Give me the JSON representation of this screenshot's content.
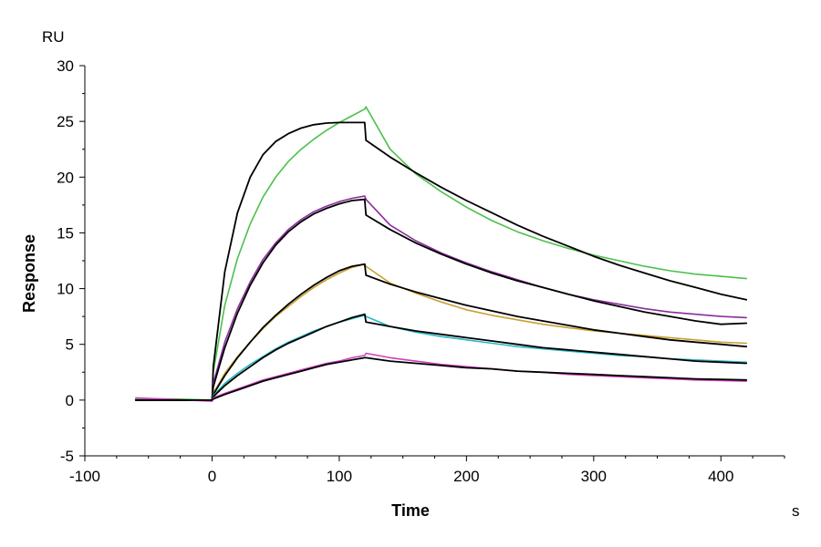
{
  "chart_data": {
    "type": "line",
    "xlabel": "Time",
    "xunit": "s",
    "ylabel": "Response",
    "yunit": "RU",
    "xlim": [
      -100,
      450
    ],
    "ylim": [
      -5,
      30
    ],
    "xticks": [
      -100,
      0,
      100,
      200,
      300,
      400
    ],
    "yticks": [
      -5,
      0,
      5,
      10,
      15,
      20,
      25,
      30
    ],
    "grid": false,
    "legend": "none",
    "series": [
      {
        "color": "#4cc04c",
        "points": [
          [
            -60,
            0.1
          ],
          [
            -30,
            0.1
          ],
          [
            0,
            0
          ],
          [
            1,
            2.5
          ],
          [
            10,
            8.5
          ],
          [
            20,
            12.7
          ],
          [
            30,
            15.8
          ],
          [
            40,
            18.2
          ],
          [
            50,
            20.0
          ],
          [
            60,
            21.4
          ],
          [
            70,
            22.5
          ],
          [
            80,
            23.4
          ],
          [
            90,
            24.2
          ],
          [
            100,
            24.9
          ],
          [
            110,
            25.5
          ],
          [
            120,
            26.1
          ],
          [
            121,
            26.3
          ],
          [
            140,
            22.5
          ],
          [
            160,
            20.3
          ],
          [
            180,
            18.7
          ],
          [
            200,
            17.3
          ],
          [
            220,
            16.1
          ],
          [
            240,
            15.1
          ],
          [
            260,
            14.3
          ],
          [
            280,
            13.6
          ],
          [
            300,
            13.0
          ],
          [
            320,
            12.5
          ],
          [
            340,
            12.0
          ],
          [
            360,
            11.6
          ],
          [
            380,
            11.3
          ],
          [
            400,
            11.1
          ],
          [
            420,
            10.9
          ]
        ]
      },
      {
        "color": "#000000",
        "points": [
          [
            -60,
            0
          ],
          [
            0,
            0
          ],
          [
            1,
            3.0
          ],
          [
            10,
            11.5
          ],
          [
            20,
            16.8
          ],
          [
            30,
            20.0
          ],
          [
            40,
            22.0
          ],
          [
            50,
            23.2
          ],
          [
            60,
            23.9
          ],
          [
            70,
            24.4
          ],
          [
            80,
            24.7
          ],
          [
            90,
            24.85
          ],
          [
            100,
            24.9
          ],
          [
            120,
            24.9
          ],
          [
            121,
            23.3
          ],
          [
            140,
            21.8
          ],
          [
            160,
            20.4
          ],
          [
            180,
            19.1
          ],
          [
            200,
            17.9
          ],
          [
            220,
            16.8
          ],
          [
            240,
            15.7
          ],
          [
            260,
            14.7
          ],
          [
            280,
            13.8
          ],
          [
            300,
            12.9
          ],
          [
            320,
            12.1
          ],
          [
            340,
            11.4
          ],
          [
            360,
            10.7
          ],
          [
            380,
            10.1
          ],
          [
            400,
            9.5
          ],
          [
            420,
            9.0
          ]
        ]
      },
      {
        "color": "#8b2d9e",
        "points": [
          [
            -60,
            0
          ],
          [
            0,
            0
          ],
          [
            1,
            1.5
          ],
          [
            10,
            5.2
          ],
          [
            20,
            8.2
          ],
          [
            30,
            10.6
          ],
          [
            40,
            12.6
          ],
          [
            50,
            14.1
          ],
          [
            60,
            15.3
          ],
          [
            70,
            16.2
          ],
          [
            80,
            16.9
          ],
          [
            90,
            17.4
          ],
          [
            100,
            17.8
          ],
          [
            110,
            18.1
          ],
          [
            120,
            18.3
          ],
          [
            121,
            18.0
          ],
          [
            140,
            15.7
          ],
          [
            160,
            14.3
          ],
          [
            180,
            13.2
          ],
          [
            200,
            12.3
          ],
          [
            220,
            11.5
          ],
          [
            240,
            10.8
          ],
          [
            260,
            10.1
          ],
          [
            280,
            9.5
          ],
          [
            300,
            9.0
          ],
          [
            320,
            8.6
          ],
          [
            340,
            8.2
          ],
          [
            360,
            7.9
          ],
          [
            380,
            7.7
          ],
          [
            400,
            7.5
          ],
          [
            420,
            7.4
          ]
        ]
      },
      {
        "color": "#000000",
        "points": [
          [
            -60,
            0
          ],
          [
            0,
            0
          ],
          [
            1,
            1.2
          ],
          [
            10,
            4.7
          ],
          [
            20,
            7.8
          ],
          [
            30,
            10.3
          ],
          [
            40,
            12.3
          ],
          [
            50,
            13.9
          ],
          [
            60,
            15.1
          ],
          [
            70,
            16.0
          ],
          [
            80,
            16.7
          ],
          [
            90,
            17.2
          ],
          [
            100,
            17.6
          ],
          [
            110,
            17.9
          ],
          [
            120,
            18.0
          ],
          [
            121,
            16.6
          ],
          [
            140,
            15.3
          ],
          [
            160,
            14.1
          ],
          [
            180,
            13.1
          ],
          [
            200,
            12.2
          ],
          [
            220,
            11.4
          ],
          [
            240,
            10.7
          ],
          [
            260,
            10.1
          ],
          [
            280,
            9.5
          ],
          [
            300,
            8.9
          ],
          [
            320,
            8.4
          ],
          [
            340,
            7.9
          ],
          [
            360,
            7.5
          ],
          [
            380,
            7.1
          ],
          [
            400,
            6.8
          ],
          [
            420,
            6.9
          ]
        ]
      },
      {
        "color": "#c9a030",
        "points": [
          [
            -60,
            0
          ],
          [
            0,
            0
          ],
          [
            1,
            0.6
          ],
          [
            10,
            2.4
          ],
          [
            20,
            3.9
          ],
          [
            30,
            5.2
          ],
          [
            40,
            6.4
          ],
          [
            50,
            7.5
          ],
          [
            60,
            8.4
          ],
          [
            70,
            9.3
          ],
          [
            80,
            10.1
          ],
          [
            90,
            10.8
          ],
          [
            100,
            11.4
          ],
          [
            110,
            11.9
          ],
          [
            120,
            12.2
          ],
          [
            121,
            12.0
          ],
          [
            140,
            10.5
          ],
          [
            160,
            9.6
          ],
          [
            180,
            8.8
          ],
          [
            200,
            8.1
          ],
          [
            220,
            7.6
          ],
          [
            240,
            7.2
          ],
          [
            260,
            6.8
          ],
          [
            280,
            6.5
          ],
          [
            300,
            6.2
          ],
          [
            320,
            6.0
          ],
          [
            340,
            5.8
          ],
          [
            360,
            5.6
          ],
          [
            380,
            5.4
          ],
          [
            400,
            5.2
          ],
          [
            420,
            5.1
          ]
        ]
      },
      {
        "color": "#000000",
        "points": [
          [
            -60,
            0
          ],
          [
            0,
            0
          ],
          [
            1,
            0.5
          ],
          [
            10,
            2.2
          ],
          [
            20,
            3.8
          ],
          [
            30,
            5.2
          ],
          [
            40,
            6.5
          ],
          [
            50,
            7.6
          ],
          [
            60,
            8.6
          ],
          [
            70,
            9.5
          ],
          [
            80,
            10.3
          ],
          [
            90,
            11.0
          ],
          [
            100,
            11.6
          ],
          [
            110,
            12.0
          ],
          [
            120,
            12.2
          ],
          [
            121,
            11.2
          ],
          [
            140,
            10.4
          ],
          [
            160,
            9.7
          ],
          [
            180,
            9.1
          ],
          [
            200,
            8.5
          ],
          [
            220,
            8.0
          ],
          [
            240,
            7.5
          ],
          [
            260,
            7.1
          ],
          [
            280,
            6.7
          ],
          [
            300,
            6.3
          ],
          [
            320,
            6.0
          ],
          [
            340,
            5.7
          ],
          [
            360,
            5.4
          ],
          [
            380,
            5.2
          ],
          [
            400,
            5.0
          ],
          [
            420,
            4.8
          ]
        ]
      },
      {
        "color": "#2bb8c8",
        "points": [
          [
            -60,
            0
          ],
          [
            0,
            0
          ],
          [
            1,
            0.4
          ],
          [
            10,
            1.5
          ],
          [
            20,
            2.4
          ],
          [
            30,
            3.2
          ],
          [
            40,
            3.9
          ],
          [
            50,
            4.6
          ],
          [
            60,
            5.2
          ],
          [
            70,
            5.7
          ],
          [
            80,
            6.2
          ],
          [
            90,
            6.6
          ],
          [
            100,
            7.0
          ],
          [
            110,
            7.3
          ],
          [
            120,
            7.6
          ],
          [
            121,
            7.5
          ],
          [
            140,
            6.6
          ],
          [
            160,
            6.1
          ],
          [
            180,
            5.7
          ],
          [
            200,
            5.4
          ],
          [
            220,
            5.1
          ],
          [
            240,
            4.8
          ],
          [
            260,
            4.6
          ],
          [
            280,
            4.4
          ],
          [
            300,
            4.2
          ],
          [
            320,
            4.0
          ],
          [
            340,
            3.9
          ],
          [
            360,
            3.7
          ],
          [
            380,
            3.6
          ],
          [
            400,
            3.5
          ],
          [
            420,
            3.4
          ]
        ]
      },
      {
        "color": "#000000",
        "points": [
          [
            -60,
            0
          ],
          [
            0,
            0
          ],
          [
            1,
            0.3
          ],
          [
            10,
            1.3
          ],
          [
            20,
            2.2
          ],
          [
            30,
            3.0
          ],
          [
            40,
            3.8
          ],
          [
            50,
            4.5
          ],
          [
            60,
            5.1
          ],
          [
            70,
            5.6
          ],
          [
            80,
            6.1
          ],
          [
            90,
            6.6
          ],
          [
            100,
            7.0
          ],
          [
            110,
            7.4
          ],
          [
            120,
            7.7
          ],
          [
            121,
            7.0
          ],
          [
            140,
            6.6
          ],
          [
            160,
            6.2
          ],
          [
            180,
            5.9
          ],
          [
            200,
            5.6
          ],
          [
            220,
            5.3
          ],
          [
            240,
            5.0
          ],
          [
            260,
            4.7
          ],
          [
            280,
            4.5
          ],
          [
            300,
            4.3
          ],
          [
            320,
            4.1
          ],
          [
            340,
            3.9
          ],
          [
            360,
            3.7
          ],
          [
            380,
            3.5
          ],
          [
            400,
            3.4
          ],
          [
            420,
            3.3
          ]
        ]
      },
      {
        "color": "#d040c0",
        "points": [
          [
            -60,
            0.2
          ],
          [
            -40,
            0.1
          ],
          [
            0,
            -0.1
          ],
          [
            1,
            0.2
          ],
          [
            10,
            0.6
          ],
          [
            20,
            1.0
          ],
          [
            30,
            1.4
          ],
          [
            40,
            1.8
          ],
          [
            50,
            2.1
          ],
          [
            60,
            2.4
          ],
          [
            70,
            2.7
          ],
          [
            80,
            3.0
          ],
          [
            90,
            3.3
          ],
          [
            100,
            3.5
          ],
          [
            110,
            3.8
          ],
          [
            120,
            4.0
          ],
          [
            121,
            4.2
          ],
          [
            140,
            3.8
          ],
          [
            160,
            3.5
          ],
          [
            180,
            3.2
          ],
          [
            200,
            3.0
          ],
          [
            220,
            2.8
          ],
          [
            240,
            2.6
          ],
          [
            260,
            2.5
          ],
          [
            280,
            2.3
          ],
          [
            300,
            2.2
          ],
          [
            320,
            2.1
          ],
          [
            340,
            2.0
          ],
          [
            360,
            1.9
          ],
          [
            380,
            1.8
          ],
          [
            400,
            1.75
          ],
          [
            420,
            1.7
          ]
        ]
      },
      {
        "color": "#000000",
        "points": [
          [
            -60,
            0
          ],
          [
            0,
            0
          ],
          [
            1,
            0.1
          ],
          [
            10,
            0.5
          ],
          [
            20,
            0.9
          ],
          [
            30,
            1.3
          ],
          [
            40,
            1.7
          ],
          [
            50,
            2.0
          ],
          [
            60,
            2.3
          ],
          [
            70,
            2.6
          ],
          [
            80,
            2.9
          ],
          [
            90,
            3.2
          ],
          [
            100,
            3.4
          ],
          [
            110,
            3.6
          ],
          [
            120,
            3.8
          ],
          [
            121,
            3.8
          ],
          [
            140,
            3.5
          ],
          [
            160,
            3.3
          ],
          [
            180,
            3.1
          ],
          [
            200,
            2.9
          ],
          [
            220,
            2.8
          ],
          [
            240,
            2.6
          ],
          [
            260,
            2.5
          ],
          [
            280,
            2.4
          ],
          [
            300,
            2.3
          ],
          [
            320,
            2.2
          ],
          [
            340,
            2.1
          ],
          [
            360,
            2.0
          ],
          [
            380,
            1.9
          ],
          [
            400,
            1.85
          ],
          [
            420,
            1.8
          ]
        ]
      }
    ]
  }
}
